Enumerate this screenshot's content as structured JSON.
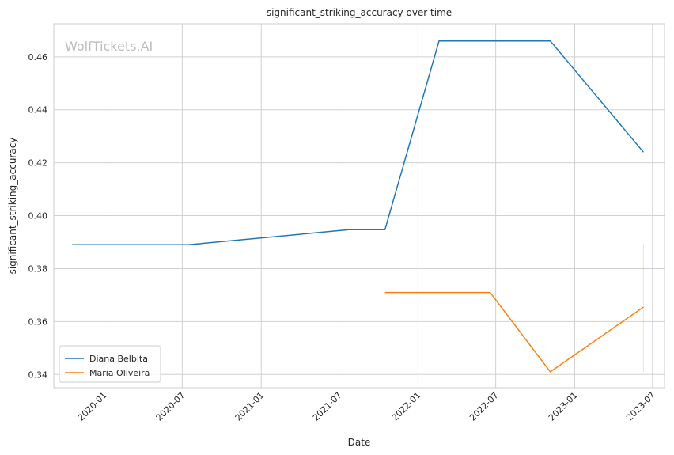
{
  "watermark": "WolfTickets.AI",
  "chart_data": {
    "type": "line",
    "title": "significant_striking_accuracy over time",
    "xlabel": "Date",
    "ylabel": "significant_striking_accuracy",
    "x_ticks": [
      "2020-01",
      "2020-07",
      "2021-01",
      "2021-07",
      "2022-01",
      "2022-07",
      "2023-01",
      "2023-07"
    ],
    "y_ticks": [
      "0.34",
      "0.36",
      "0.38",
      "0.40",
      "0.42",
      "0.44",
      "0.46"
    ],
    "xlim": [
      "2019-09-06",
      "2023-07-29"
    ],
    "ylim": [
      0.335,
      0.4725
    ],
    "grid": true,
    "legend_position": "lower-left",
    "series": [
      {
        "name": "Diana Belbita",
        "color": "#1f77b4",
        "points": [
          {
            "x": "2019-10-19",
            "y": 0.389
          },
          {
            "x": "2020-07-15",
            "y": 0.389
          },
          {
            "x": "2021-07-24",
            "y": 0.3947
          },
          {
            "x": "2021-10-16",
            "y": 0.3947
          },
          {
            "x": "2022-02-19",
            "y": 0.466
          },
          {
            "x": "2022-11-05",
            "y": 0.466
          },
          {
            "x": "2023-06-10",
            "y": 0.424
          }
        ]
      },
      {
        "name": "Maria Oliveira",
        "color": "#ff7f0e",
        "points": [
          {
            "x": "2021-10-16",
            "y": 0.371
          },
          {
            "x": "2022-06-18",
            "y": 0.371
          },
          {
            "x": "2022-11-05",
            "y": 0.341
          },
          {
            "x": "2023-06-10",
            "y": 0.3655
          }
        ],
        "band": {
          "x": "2023-06-10",
          "y_low": 0.341,
          "y_high": 0.3895
        }
      }
    ]
  }
}
